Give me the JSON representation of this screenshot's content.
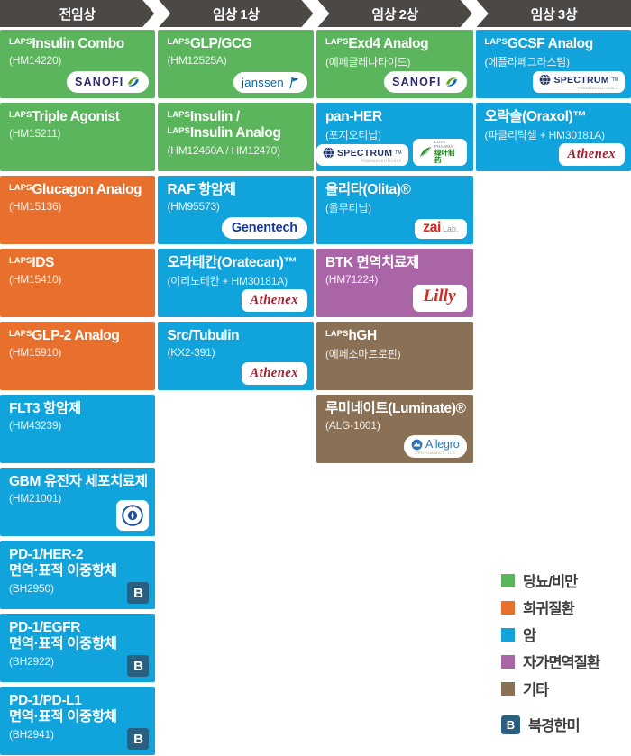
{
  "laps_prefix": "LAPS",
  "header": {
    "phases": [
      "전임상",
      "임상 1상",
      "임상 2상",
      "임상 3상"
    ]
  },
  "colors": {
    "green": "#5bb55d",
    "orange": "#e86f2c",
    "blue": "#10a3dc",
    "purple": "#a965a5",
    "brown": "#8a7054",
    "header_bar": "#4b4846",
    "beijing_badge": "#2a5f80"
  },
  "columns": [
    {
      "cells": [
        {
          "category": "green",
          "lines": [
            {
              "laps": true,
              "text": "Insulin Combo"
            }
          ],
          "code": "(HM14220)",
          "logos": [
            "sanofi"
          ]
        },
        {
          "category": "green",
          "lines": [
            {
              "laps": true,
              "text": "Triple Agonist"
            }
          ],
          "code": "(HM15211)",
          "logos": []
        },
        {
          "category": "orange",
          "lines": [
            {
              "laps": true,
              "text": "Glucagon Analog"
            }
          ],
          "code": "(HM15136)",
          "logos": []
        },
        {
          "category": "orange",
          "lines": [
            {
              "laps": true,
              "text": "IDS"
            }
          ],
          "code": "(HM15410)",
          "logos": []
        },
        {
          "category": "orange",
          "lines": [
            {
              "laps": true,
              "text": "GLP-2 Analog"
            }
          ],
          "code": "(HM15910)",
          "logos": []
        },
        {
          "category": "blue",
          "lines": [
            {
              "laps": false,
              "text": "FLT3 항암제"
            }
          ],
          "code": "(HM43239)",
          "logos": []
        },
        {
          "category": "blue",
          "lines": [
            {
              "laps": false,
              "text": "GBM 유전자 세포치료제"
            }
          ],
          "code": "(HM21001)",
          "logos": [
            "seal"
          ]
        },
        {
          "category": "blue",
          "lines": [
            {
              "laps": false,
              "text": "PD-1/HER-2"
            },
            {
              "laps": false,
              "text": "면역·표적 이중항체"
            }
          ],
          "code": "(BH2950)",
          "logos": [],
          "badge": "B"
        },
        {
          "category": "blue",
          "lines": [
            {
              "laps": false,
              "text": "PD-1/EGFR"
            },
            {
              "laps": false,
              "text": "면역·표적 이중항체"
            }
          ],
          "code": "(BH2922)",
          "logos": [],
          "badge": "B"
        },
        {
          "category": "blue",
          "lines": [
            {
              "laps": false,
              "text": "PD-1/PD-L1"
            },
            {
              "laps": false,
              "text": "면역·표적 이중항체"
            }
          ],
          "code": "(BH2941)",
          "logos": [],
          "badge": "B"
        }
      ]
    },
    {
      "cells": [
        {
          "category": "green",
          "lines": [
            {
              "laps": true,
              "text": "GLP/GCG"
            }
          ],
          "code": "(HM12525A)",
          "logos": [
            "janssen"
          ]
        },
        {
          "category": "green",
          "lines": [
            {
              "laps": true,
              "text": "Insulin /"
            },
            {
              "laps": true,
              "text": "Insulin Analog"
            }
          ],
          "code": "(HM12460A / HM12470)",
          "logos": []
        },
        {
          "category": "blue",
          "lines": [
            {
              "laps": false,
              "text": "RAF 항암제"
            }
          ],
          "code": "(HM95573)",
          "logos": [
            "genentech"
          ]
        },
        {
          "category": "blue",
          "lines": [
            {
              "laps": false,
              "text": "오라테칸(Oratecan)™"
            }
          ],
          "code": "(이리노테칸 + HM30181A)",
          "logos": [
            "athenex"
          ]
        },
        {
          "category": "blue",
          "lines": [
            {
              "laps": false,
              "text": "Src/Tubulin"
            }
          ],
          "code": "(KX2-391)",
          "logos": [
            "athenex"
          ]
        }
      ]
    },
    {
      "cells": [
        {
          "category": "green",
          "lines": [
            {
              "laps": true,
              "text": "Exd4 Analog"
            }
          ],
          "code": "(에페글레나타이드)",
          "logos": [
            "sanofi"
          ]
        },
        {
          "category": "blue",
          "lines": [
            {
              "laps": false,
              "text": "pan-HER"
            }
          ],
          "code": "(포지오티닙)",
          "logos": [
            "spectrum",
            "luye"
          ]
        },
        {
          "category": "blue",
          "lines": [
            {
              "laps": false,
              "text": "올리타(Olita)®"
            }
          ],
          "code": "(올무티닙)",
          "logos": [
            "zailab"
          ]
        },
        {
          "category": "purple",
          "lines": [
            {
              "laps": false,
              "text": "BTK 면역치료제"
            }
          ],
          "code": "(HM71224)",
          "logos": [
            "lilly"
          ]
        },
        {
          "category": "brown",
          "lines": [
            {
              "laps": true,
              "text": "hGH"
            }
          ],
          "code": "(에페소마트로핀)",
          "logos": []
        },
        {
          "category": "brown",
          "lines": [
            {
              "laps": false,
              "text": "루미네이트(Luminate)®"
            }
          ],
          "code": "(ALG-1001)",
          "logos": [
            "allegro"
          ]
        }
      ]
    },
    {
      "cells": [
        {
          "category": "blue",
          "lines": [
            {
              "laps": true,
              "text": "GCSF Analog"
            }
          ],
          "code": "(에플라페그라스팀)",
          "logos": [
            "spectrum"
          ]
        },
        {
          "category": "blue",
          "lines": [
            {
              "laps": false,
              "text": "오락솔(Oraxol)™"
            }
          ],
          "code": "(파클리탁셀 + HM30181A)",
          "logos": [
            "athenex"
          ]
        }
      ]
    }
  ],
  "logos": {
    "sanofi": {
      "text": "SANOFI"
    },
    "janssen": {
      "text": "janssen"
    },
    "genentech": {
      "text": "Genentech"
    },
    "athenex": {
      "text": "Athenex"
    },
    "spectrum": {
      "text": "SPECTRUM",
      "tm": "TM",
      "subtext": "PHARMACEUTICALS"
    },
    "luye": {
      "text": "LUYE PHARMA",
      "subtext": "绿叶制药"
    },
    "zailab": {
      "text": "zai",
      "suffix": "Lab."
    },
    "lilly": {
      "text": "Lilly"
    },
    "allegro": {
      "text": "Allegro",
      "subtext": "OPHTHALMICS, LLC"
    }
  },
  "legend": {
    "categories": [
      {
        "label": "당뇨/비만",
        "key": "green"
      },
      {
        "label": "희귀질환",
        "key": "orange"
      },
      {
        "label": "암",
        "key": "blue"
      },
      {
        "label": "자가면역질환",
        "key": "purple"
      },
      {
        "label": "기타",
        "key": "brown"
      }
    ],
    "beijing": {
      "badge": "B",
      "label": "북경한미"
    }
  }
}
